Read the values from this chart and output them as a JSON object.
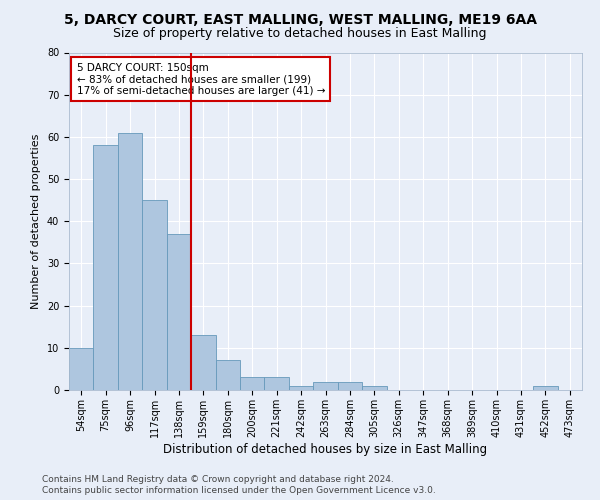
{
  "title1": "5, DARCY COURT, EAST MALLING, WEST MALLING, ME19 6AA",
  "title2": "Size of property relative to detached houses in East Malling",
  "xlabel": "Distribution of detached houses by size in East Malling",
  "ylabel": "Number of detached properties",
  "categories": [
    "54sqm",
    "75sqm",
    "96sqm",
    "117sqm",
    "138sqm",
    "159sqm",
    "180sqm",
    "200sqm",
    "221sqm",
    "242sqm",
    "263sqm",
    "284sqm",
    "305sqm",
    "326sqm",
    "347sqm",
    "368sqm",
    "389sqm",
    "410sqm",
    "431sqm",
    "452sqm",
    "473sqm"
  ],
  "values": [
    10,
    58,
    61,
    45,
    37,
    13,
    7,
    3,
    3,
    1,
    2,
    2,
    1,
    0,
    0,
    0,
    0,
    0,
    0,
    1,
    0
  ],
  "bar_color": "#aec6df",
  "bar_edge_color": "#6699bb",
  "vline_x": 4.5,
  "vline_color": "#cc0000",
  "annotation_text": "5 DARCY COURT: 150sqm\n← 83% of detached houses are smaller (199)\n17% of semi-detached houses are larger (41) →",
  "annotation_box_color": "#cc0000",
  "ylim": [
    0,
    80
  ],
  "yticks": [
    0,
    10,
    20,
    30,
    40,
    50,
    60,
    70,
    80
  ],
  "footnote1": "Contains HM Land Registry data © Crown copyright and database right 2024.",
  "footnote2": "Contains public sector information licensed under the Open Government Licence v3.0.",
  "bg_color": "#e8eef8",
  "plot_bg_color": "#e8eef8",
  "grid_color": "#ffffff",
  "title1_fontsize": 10,
  "title2_fontsize": 9,
  "xlabel_fontsize": 8.5,
  "ylabel_fontsize": 8,
  "tick_fontsize": 7,
  "annotation_fontsize": 7.5,
  "footnote_fontsize": 6.5
}
